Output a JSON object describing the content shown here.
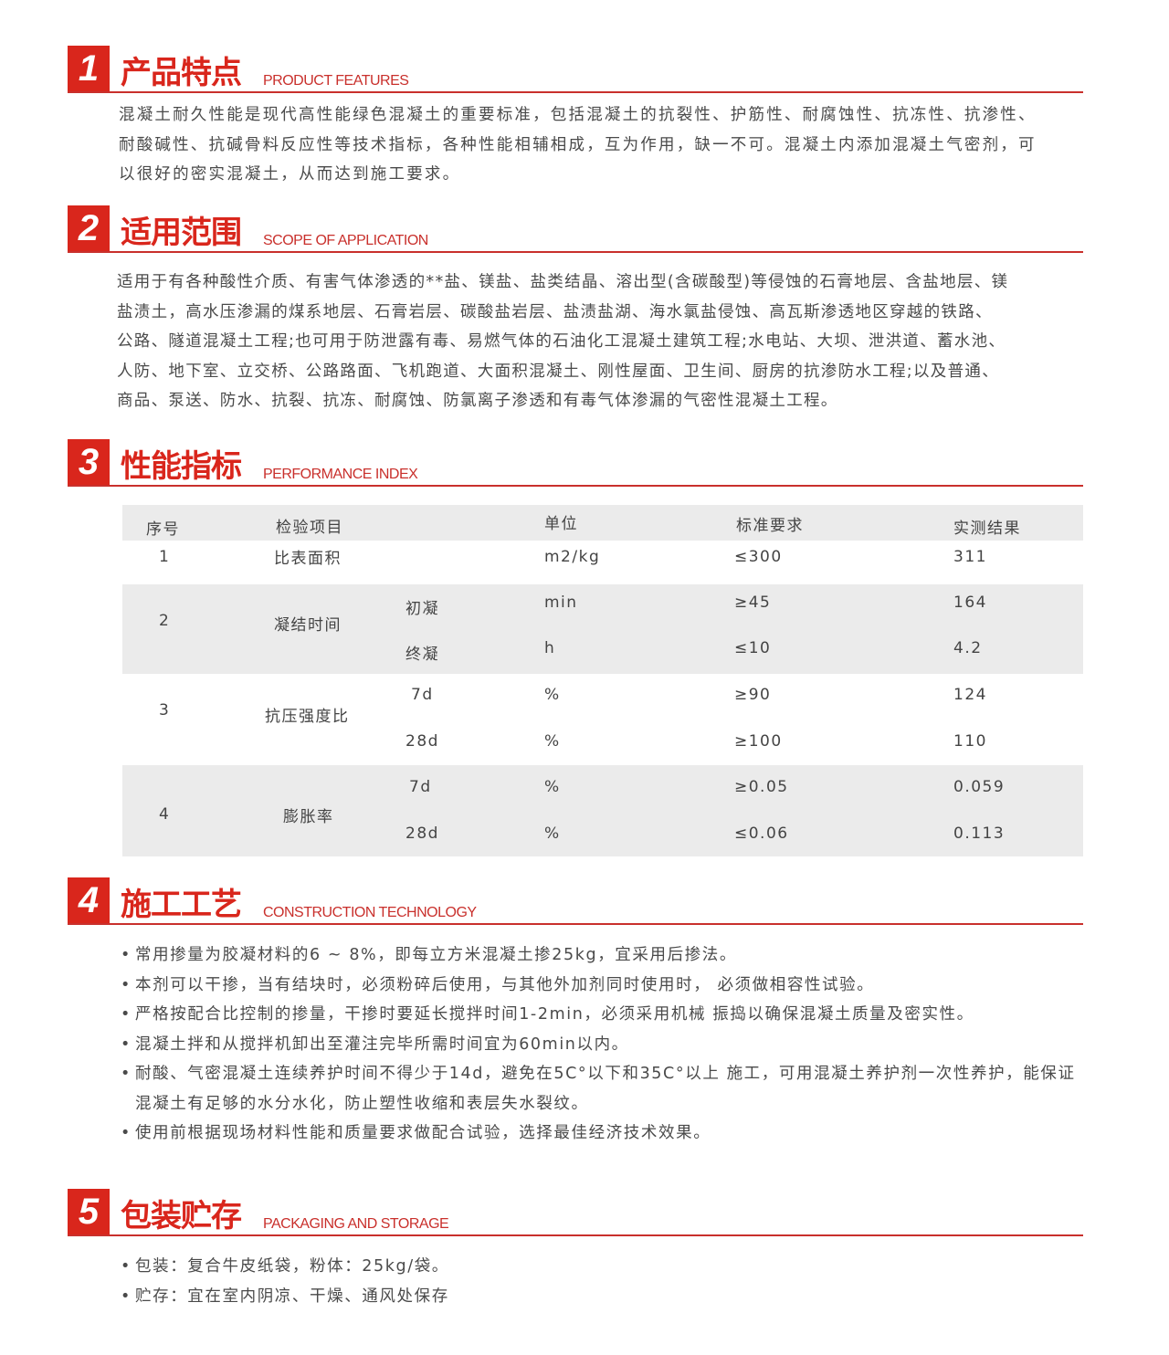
{
  "sections": [
    {
      "num": "1",
      "title": "产品特点",
      "title_en": "PRODUCT FEATURES",
      "lines": [
        "混凝土耐久性能是现代高性能绿色混凝土的重要标准，包括混凝土的抗裂性、护筋性、耐腐蚀性、抗冻性、抗渗性、",
        "耐酸碱性、抗碱骨料反应性等技术指标，各种性能相辅相成，互为作用，缺一不可。混凝土内添加混凝土气密剂，可",
        "以很好的密实混凝土，从而达到施工要求。"
      ]
    },
    {
      "num": "2",
      "title": "适用范围",
      "title_en": "SCOPE OF APPLICATION",
      "lines": [
        "适用于有各种酸性介质、有害气体渗透的**盐、镁盐、盐类结晶、溶出型(含碳酸型)等侵蚀的石膏地层、含盐地层、镁",
        "盐渍土，高水压渗漏的煤系地层、石膏岩层、碳酸盐岩层、盐渍盐湖、海水氯盐侵蚀、高瓦斯渗透地区穿越的铁路、",
        "公路、隧道混凝土工程;也可用于防泄露有毒、易燃气体的石油化工混凝土建筑工程;水电站、大坝、泄洪道、蓄水池、",
        "人防、地下室、立交桥、公路路面、飞机跑道、大面积混凝土、刚性屋面、卫生间、厨房的抗渗防水工程;以及普通、",
        "商品、泵送、防水、抗裂、抗冻、耐腐蚀、防氯离子渗透和有毒气体渗漏的气密性混凝土工程。"
      ]
    },
    {
      "num": "3",
      "title": "性能指标",
      "title_en": "PERFORMANCE INDEX"
    },
    {
      "num": "4",
      "title": "施工工艺",
      "title_en": "CONSTRUCTION TECHNOLOGY",
      "bullets": [
        [
          "常用掺量为胶凝材料的6 ~ 8%，即每立方米混凝土掺25kg，宜采用后掺法。"
        ],
        [
          "本剂可以干掺，当有结块时，必须粉碎后使用，与其他外加剂同时使用时，  必须做相容性试验。"
        ],
        [
          "严格按配合比控制的掺量，干掺时要延长搅拌时间1-2min，必须采用机械 振捣以确保混凝土质量及密实性。"
        ],
        [
          "混凝土拌和从搅拌机卸出至灌注完毕所需时间宜为60min以内。"
        ],
        [
          "耐酸、气密混凝土连续养护时间不得少于14d，避免在5C°以下和35C°以上 施工，可用混凝土养护剂一次性养护，能保证",
          "混凝土有足够的水分水化，防止塑性收缩和表层失水裂纹。"
        ],
        [
          "使用前根据现场材料性能和质量要求做配合试验，选择最佳经济技术效果。"
        ]
      ]
    },
    {
      "num": "5",
      "title": "包装贮存",
      "title_en": "PACKAGING AND STORAGE",
      "bullets": [
        [
          "包装：复合牛皮纸袋，粉体：25kg/袋。"
        ],
        [
          "贮存：宜在室内阴凉、干燥、通风处保存"
        ]
      ]
    }
  ],
  "table": {
    "headers": [
      "序号",
      "检验项目",
      "单位",
      "标准要求",
      "实测结果"
    ],
    "rows": [
      {
        "no": "1",
        "item": "比表面积",
        "sub": "",
        "unit": "m2/kg",
        "std": "≤300",
        "result": "311"
      },
      {
        "no": "2",
        "item": "凝结时间",
        "sub": "初凝",
        "unit": "min",
        "std": "≥45",
        "result": "164"
      },
      {
        "no": "",
        "item": "",
        "sub": "终凝",
        "unit": "h",
        "std": "≤10",
        "result": "4.2"
      },
      {
        "no": "3",
        "item": "抗压强度比",
        "sub": "7d",
        "unit": "%",
        "std": "≥90",
        "result": "124"
      },
      {
        "no": "",
        "item": "",
        "sub": "28d",
        "unit": "%",
        "std": "≥100",
        "result": "110"
      },
      {
        "no": "4",
        "item": "膨胀率",
        "sub": "7d",
        "unit": "%",
        "std": "≥0.05",
        "result": "0.059"
      },
      {
        "no": "",
        "item": "",
        "sub": "28d",
        "unit": "%",
        "std": "≤0.06",
        "result": "0.113"
      }
    ]
  },
  "colors": {
    "accent": "#d9261c",
    "row_gray": "#ebebeb"
  }
}
